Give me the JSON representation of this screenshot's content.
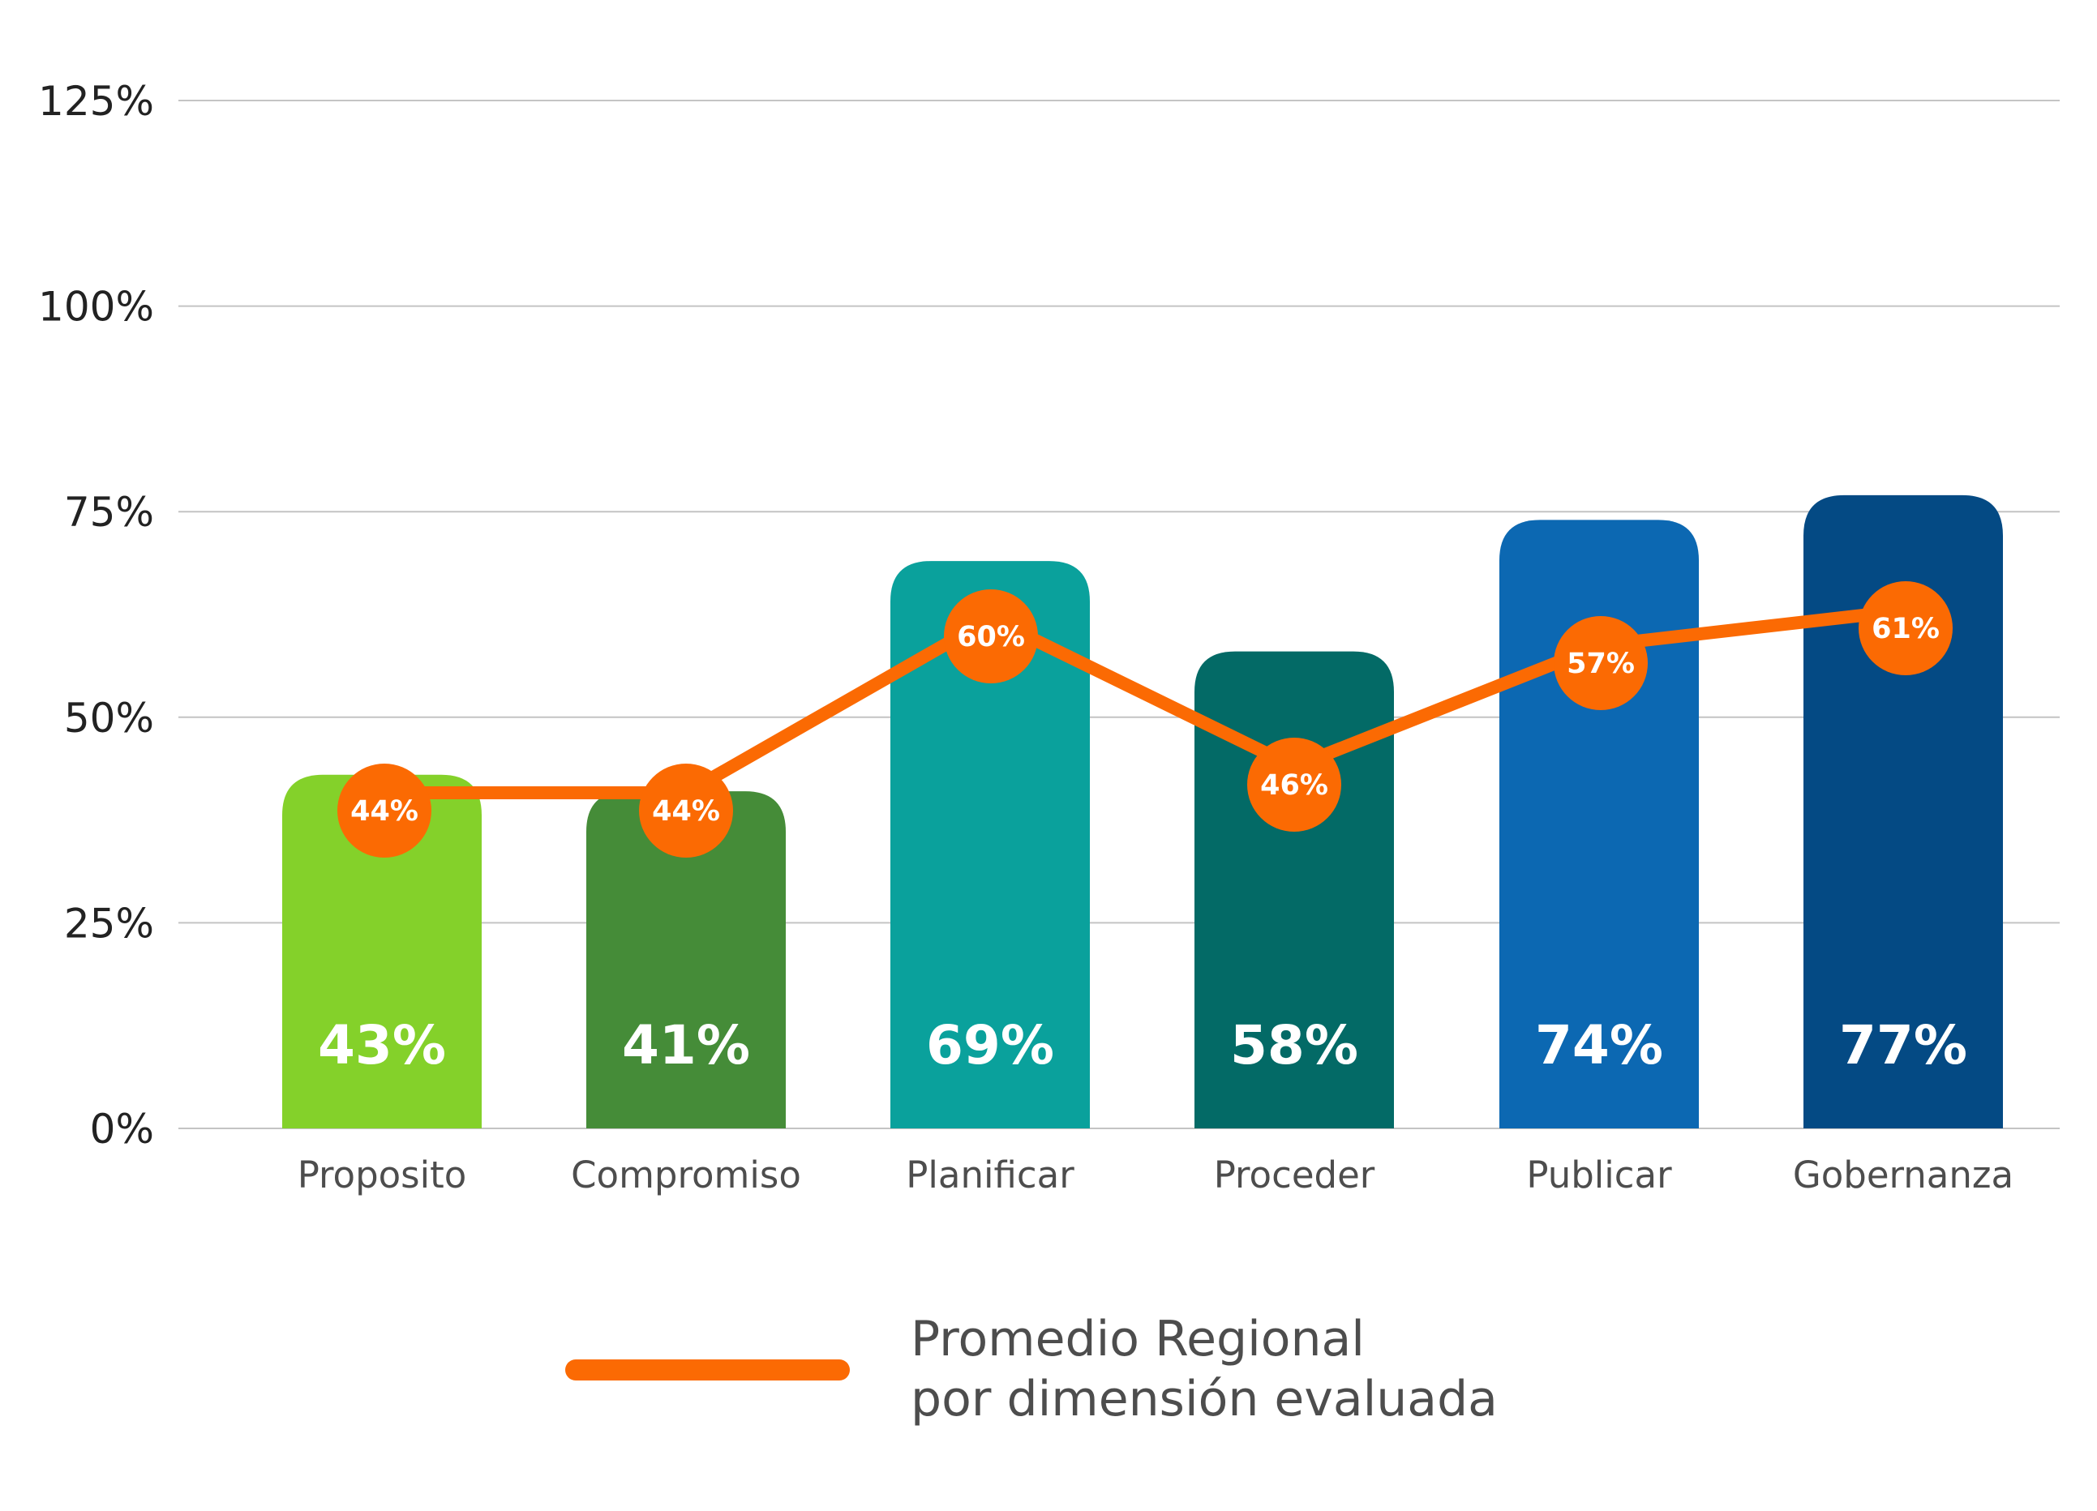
{
  "chart_data": {
    "type": "bar",
    "title": "",
    "xlabel": "",
    "ylabel": "",
    "ylim": [
      0,
      125
    ],
    "yticks": [
      "0%",
      "25%",
      "50%",
      "75%",
      "100%",
      "125%"
    ],
    "grid": true,
    "legend_position": "bottom",
    "categories": [
      "Proposito",
      "Compromiso",
      "Planificar",
      "Proceder",
      "Publicar",
      "Gobernanza"
    ],
    "series": [
      {
        "kind": "bar",
        "values": [
          43,
          41,
          69,
          58,
          74,
          77
        ],
        "labels": [
          "43%",
          "41%",
          "69%",
          "58%",
          "74%",
          "77%"
        ],
        "colors": [
          "#84d12a",
          "#458c38",
          "#0aa19c",
          "#036a66",
          "#0c68b2",
          "#044a84"
        ]
      },
      {
        "kind": "line",
        "name": "Promedio Regional\npor dimensión evaluada",
        "name_lines": [
          "Promedio Regional",
          "por dimensión evaluada"
        ],
        "values": [
          44,
          44,
          60,
          46,
          57,
          61
        ],
        "labels": [
          "44%",
          "44%",
          "60%",
          "46%",
          "57%",
          "61%"
        ],
        "color": "#fb6a03"
      }
    ],
    "colors": {
      "gridline": "#c4c4c4",
      "axis_text": "#222222",
      "category_text": "#4d4d4d",
      "line": "#fb6a03",
      "bar_label": "#ffffff"
    }
  }
}
